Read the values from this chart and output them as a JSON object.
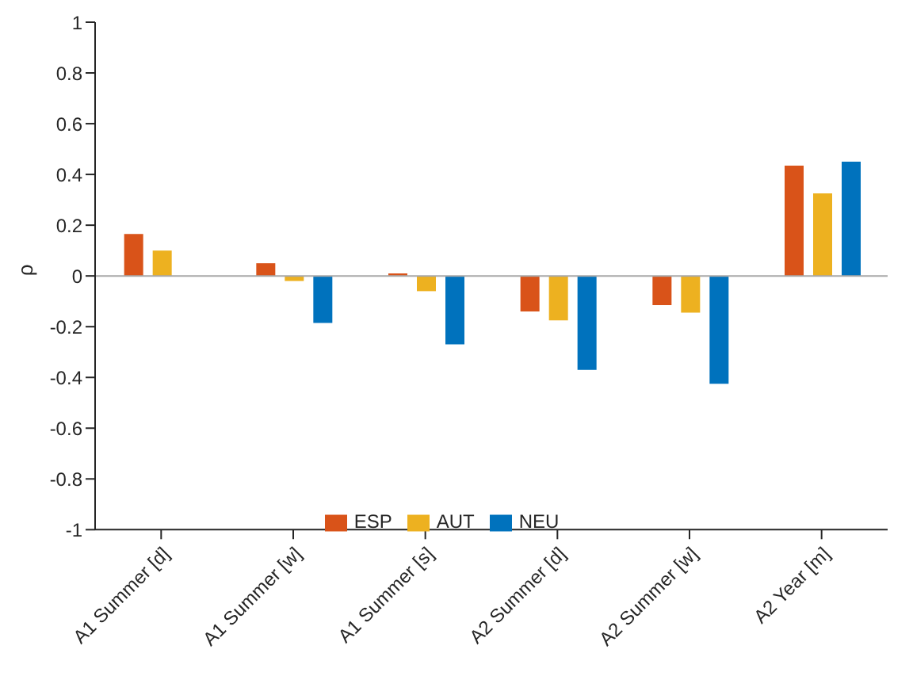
{
  "chart_data": {
    "type": "bar",
    "ylabel": "ρ",
    "categories": [
      "A1 Summer [d]",
      "A1 Summer [w]",
      "A1 Summer [s]",
      "A2 Summer [d]",
      "A2 Summer [w]",
      "A2 Year [m]"
    ],
    "series": [
      {
        "name": "ESP",
        "color": "#d95319",
        "values": [
          0.165,
          0.05,
          0.01,
          -0.14,
          -0.115,
          0.435
        ]
      },
      {
        "name": "AUT",
        "color": "#edb120",
        "values": [
          0.1,
          -0.02,
          -0.06,
          -0.175,
          -0.145,
          0.325
        ]
      },
      {
        "name": "NEU",
        "color": "#0072bd",
        "values": [
          null,
          -0.185,
          -0.27,
          -0.37,
          -0.425,
          0.45
        ]
      }
    ],
    "ylim": [
      -1,
      1
    ],
    "yticks": [
      -1,
      -0.8,
      -0.6,
      -0.4,
      -0.2,
      0,
      0.2,
      0.4,
      0.6,
      0.8,
      1
    ],
    "legend": "bottom"
  }
}
